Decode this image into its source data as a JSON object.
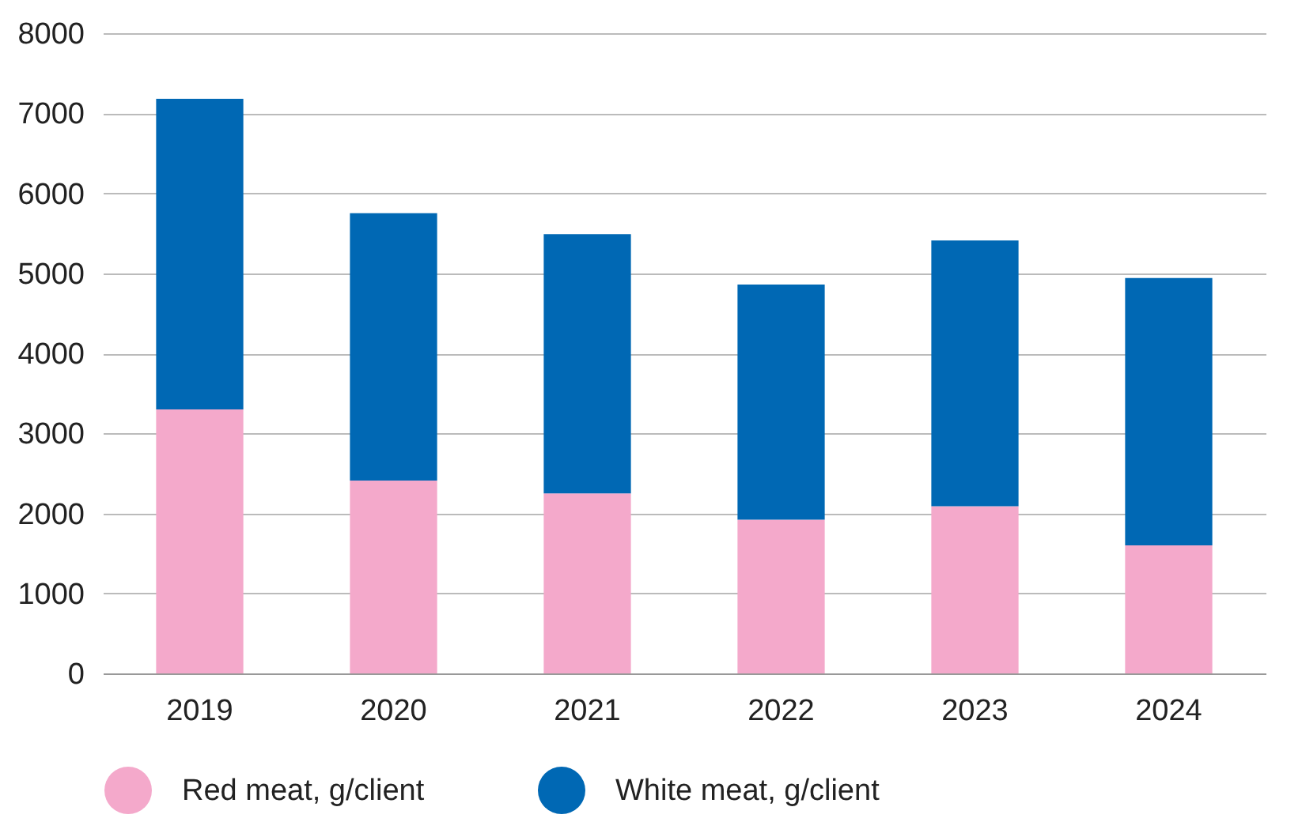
{
  "chart_data": {
    "type": "bar",
    "stacked": true,
    "categories": [
      "2019",
      "2020",
      "2021",
      "2022",
      "2023",
      "2024"
    ],
    "series": [
      {
        "name": "Red meat, g/client",
        "color": "#f4a9cb",
        "values": [
          3300,
          2410,
          2250,
          1920,
          2090,
          1600
        ]
      },
      {
        "name": "White meat, g/client",
        "color": "#0068b4",
        "values": [
          3880,
          3340,
          3240,
          2940,
          3320,
          3340
        ]
      }
    ],
    "ylim": [
      0,
      8000
    ],
    "yticks": [
      0,
      1000,
      2000,
      3000,
      4000,
      5000,
      6000,
      7000,
      8000
    ],
    "grid": "y",
    "legend": "bottom"
  }
}
